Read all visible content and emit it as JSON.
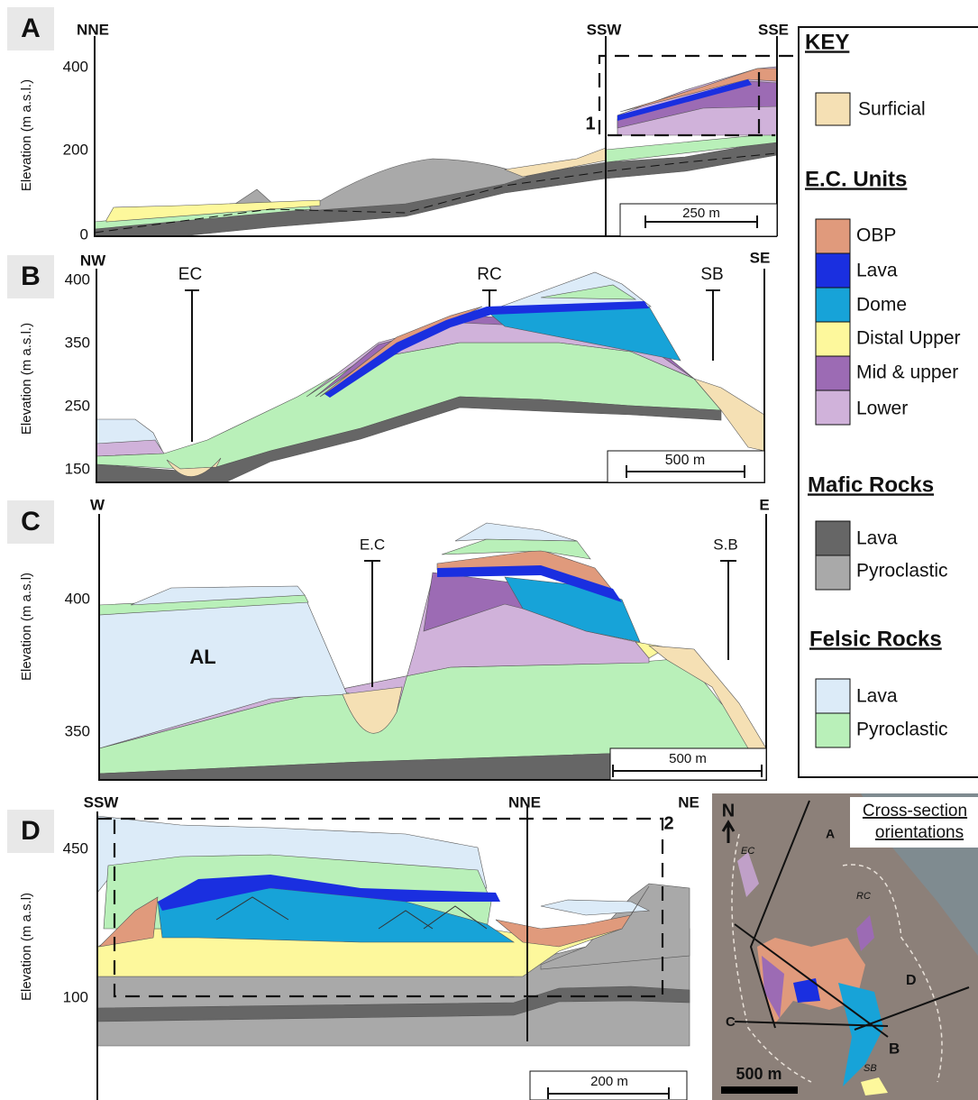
{
  "panels": [
    {
      "letter": "A",
      "left": "NNE",
      "mid": "SSW",
      "right": "SSE",
      "axis_label": "Elevation (m a.s.l.)",
      "ticks": [
        "400",
        "200",
        "0"
      ],
      "scale": "250 m",
      "marker": "1"
    },
    {
      "letter": "B",
      "left": "NW",
      "right": "SE",
      "axis_label": "Elevation (m a.s.l.)",
      "ticks": [
        "400",
        "350",
        "250",
        "150"
      ],
      "scale": "500 m",
      "labels": [
        "EC",
        "RC",
        "SB"
      ]
    },
    {
      "letter": "C",
      "left": "W",
      "right": "E",
      "axis_label": "Elevation (m a.s.l)",
      "ticks": [
        "400",
        "350"
      ],
      "scale": "500 m",
      "labels": [
        "E.C",
        "S.B",
        "AL"
      ]
    },
    {
      "letter": "D",
      "left": "SSW",
      "mid": "NNE",
      "right": "NE",
      "axis_label": "Elevation (m a.s.l)",
      "ticks": [
        "450",
        "100"
      ],
      "scale": "200 m",
      "marker": "2"
    }
  ],
  "key": {
    "title": "KEY",
    "surficial": "Surficial",
    "groups": [
      {
        "heading": "E.C. Units",
        "items": [
          "OBP",
          "Lava",
          "Dome",
          "Distal Upper",
          "Mid & upper",
          "Lower"
        ]
      },
      {
        "heading": "Mafic Rocks",
        "items": [
          "Lava",
          "Pyroclastic"
        ]
      },
      {
        "heading": "Felsic Rocks",
        "items": [
          "Lava",
          "Pyroclastic"
        ]
      }
    ]
  },
  "map": {
    "north": "N",
    "title": [
      "Cross-section",
      "orientations"
    ],
    "labels": [
      "A",
      "B",
      "C",
      "D",
      "EC",
      "RC",
      "SB"
    ],
    "scale": "500 m"
  }
}
